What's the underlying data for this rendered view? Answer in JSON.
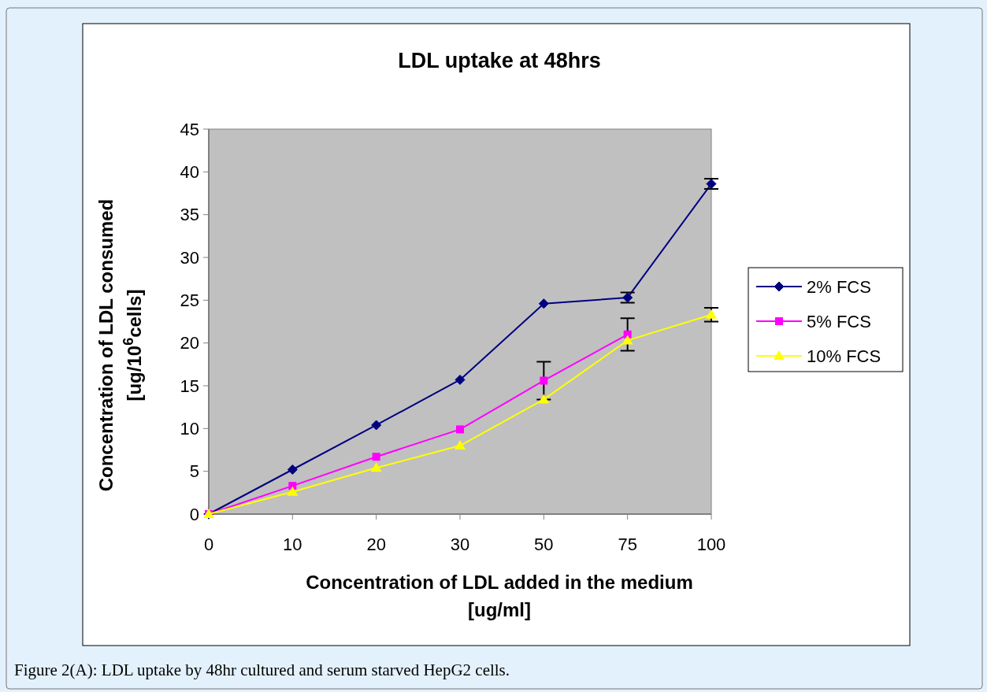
{
  "chart_data": {
    "type": "line",
    "title": "LDL uptake at 48hrs",
    "xlabel": "Concentration of LDL added in the medium\n[ug/ml]",
    "ylabel": "Concentration of LDL consumed\n[ug/10$^{6}$cells]",
    "categories": [
      "0",
      "10",
      "20",
      "30",
      "50",
      "75",
      "100"
    ],
    "series": [
      {
        "name": "2% FCS",
        "color": "#000080",
        "marker": "diamond",
        "values": [
          0,
          5.2,
          10.4,
          15.7,
          24.6,
          25.3,
          38.6
        ],
        "errors": [
          null,
          null,
          null,
          null,
          null,
          0.6,
          0.6
        ]
      },
      {
        "name": "5% FCS",
        "color": "#ff00ff",
        "marker": "square",
        "values": [
          0,
          3.3,
          6.7,
          9.9,
          15.6,
          21.0,
          null
        ],
        "errors": [
          null,
          null,
          null,
          null,
          2.2,
          1.9,
          null
        ]
      },
      {
        "name": "10% FCS",
        "color": "#ffff00",
        "marker": "triangle",
        "values": [
          0,
          2.6,
          5.4,
          8.0,
          13.4,
          20.3,
          23.3
        ],
        "errors": [
          null,
          null,
          null,
          null,
          null,
          null,
          0.8
        ]
      }
    ],
    "ylim": [
      0,
      45
    ],
    "yticks": [
      0,
      5,
      10,
      15,
      20,
      25,
      30,
      35,
      40,
      45
    ],
    "grid": false,
    "legend": "right",
    "annotations": [
      "Figure 2(A): LDL uptake by 48hr cultured and serum starved HepG2 cells."
    ]
  }
}
